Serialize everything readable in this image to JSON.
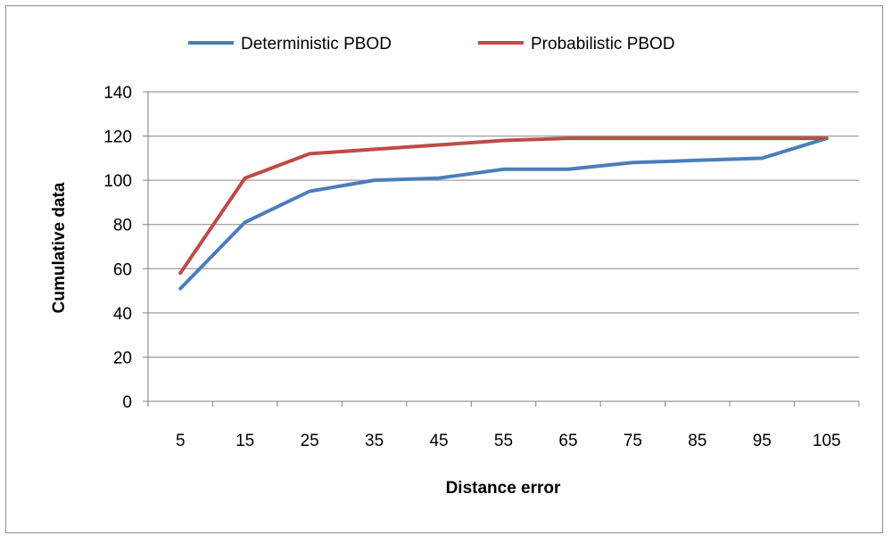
{
  "chart_data": {
    "type": "line",
    "categories": [
      "5",
      "15",
      "25",
      "35",
      "45",
      "55",
      "65",
      "75",
      "85",
      "95",
      "105"
    ],
    "series": [
      {
        "name": "Deterministic PBOD",
        "color": "#4a7ebb",
        "values": [
          51,
          81,
          95,
          100,
          101,
          105,
          105,
          108,
          109,
          110,
          119
        ]
      },
      {
        "name": "Probabilistic PBOD",
        "color": "#be4b48",
        "values": [
          58,
          101,
          112,
          114,
          116,
          118,
          119,
          119,
          119,
          119,
          119
        ]
      }
    ],
    "xlabel": "Distance error",
    "ylabel": "Cumulative data",
    "ylim": [
      0,
      140
    ],
    "yticks": [
      "0",
      "20",
      "40",
      "60",
      "80",
      "100",
      "120",
      "140"
    ],
    "grid": "horizontal major",
    "legend_position": "top"
  }
}
